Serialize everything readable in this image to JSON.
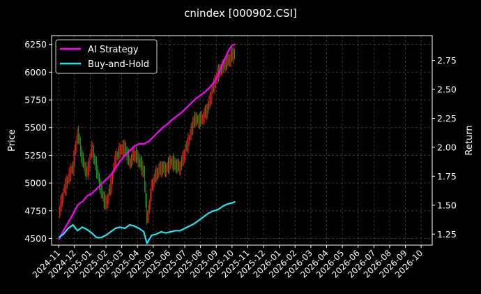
{
  "chart_data": {
    "type": "line",
    "title": "cnindex [000902.CSI]",
    "ylabel_left": "Price",
    "ylabel_right": "Return",
    "yticks_left": [
      4500,
      4750,
      5000,
      5250,
      5500,
      5750,
      6000,
      6250
    ],
    "ylim_left": [
      4440,
      6330
    ],
    "yticks_right": [
      1.25,
      1.5,
      1.75,
      2.0,
      2.25,
      2.5,
      2.75
    ],
    "ylim_right": [
      1.155,
      2.965
    ],
    "x_ticks": [
      "2024-11",
      "2024-12",
      "2025-01",
      "2025-02",
      "2025-03",
      "2025-04",
      "2025-05",
      "2025-06",
      "2025-07",
      "2025-08",
      "2025-09",
      "2025-10",
      "2025-11",
      "2025-12",
      "2026-01",
      "2026-02",
      "2026-03",
      "2026-04",
      "2026-05",
      "2026-06",
      "2026-07",
      "2026-08",
      "2026-09",
      "2026-10"
    ],
    "x_range": [
      -0.45,
      23.7
    ],
    "grid": true,
    "legend_position": "top-left",
    "colors": {
      "ai": "#ff00ff",
      "bh": "#22e5f0",
      "up": "#e0251b",
      "down": "#1d9a1d",
      "grid": "#444444"
    },
    "series": [
      {
        "name": "AI Strategy",
        "axis": "right",
        "x": [
          0,
          0.3,
          0.6,
          0.9,
          1.2,
          1.5,
          1.8,
          2.1,
          2.4,
          2.7,
          3.0,
          3.3,
          3.6,
          3.9,
          4.2,
          4.5,
          4.8,
          5.1,
          5.4,
          5.7,
          6.0,
          6.3,
          6.6,
          6.9,
          7.2,
          7.5,
          7.8,
          8.1,
          8.4,
          8.7,
          9.0,
          9.3,
          9.6,
          9.9,
          10.2,
          10.4,
          10.6,
          10.8,
          11.0,
          11.2
        ],
        "values": [
          1.2,
          1.28,
          1.35,
          1.42,
          1.5,
          1.53,
          1.58,
          1.6,
          1.64,
          1.68,
          1.72,
          1.76,
          1.82,
          1.88,
          1.93,
          1.97,
          2.01,
          2.03,
          2.03,
          2.05,
          2.09,
          2.13,
          2.17,
          2.2,
          2.24,
          2.27,
          2.3,
          2.34,
          2.38,
          2.42,
          2.45,
          2.48,
          2.52,
          2.57,
          2.65,
          2.72,
          2.78,
          2.84,
          2.88,
          2.89
        ]
      },
      {
        "name": "Buy-and-Hold",
        "axis": "right",
        "x": [
          0,
          0.3,
          0.6,
          0.9,
          1.2,
          1.5,
          1.8,
          2.1,
          2.4,
          2.7,
          3.0,
          3.3,
          3.6,
          3.9,
          4.2,
          4.5,
          4.8,
          5.1,
          5.4,
          5.6,
          5.9,
          6.2,
          6.5,
          6.8,
          7.1,
          7.4,
          7.7,
          8.0,
          8.3,
          8.6,
          8.9,
          9.2,
          9.5,
          9.8,
          10.1,
          10.4,
          10.7,
          11.0,
          11.2
        ],
        "values": [
          1.22,
          1.25,
          1.3,
          1.33,
          1.28,
          1.31,
          1.29,
          1.26,
          1.22,
          1.22,
          1.24,
          1.27,
          1.3,
          1.31,
          1.3,
          1.33,
          1.32,
          1.3,
          1.27,
          1.17,
          1.24,
          1.25,
          1.27,
          1.26,
          1.27,
          1.28,
          1.28,
          1.3,
          1.32,
          1.34,
          1.37,
          1.4,
          1.43,
          1.45,
          1.46,
          1.49,
          1.51,
          1.52,
          1.53
        ]
      },
      {
        "name": "Price",
        "axis": "left",
        "type": "candlestick",
        "x": [
          0,
          0.3,
          0.6,
          0.9,
          1.2,
          1.5,
          1.8,
          2.1,
          2.4,
          2.7,
          3.0,
          3.3,
          3.6,
          3.9,
          4.2,
          4.5,
          4.8,
          5.1,
          5.4,
          5.6,
          5.9,
          6.2,
          6.5,
          6.8,
          7.1,
          7.4,
          7.7,
          8.0,
          8.3,
          8.6,
          8.9,
          9.2,
          9.5,
          9.8,
          10.1,
          10.4,
          10.7,
          11.0,
          11.2
        ],
        "values": [
          4720,
          4920,
          5050,
          5150,
          5460,
          5200,
          5080,
          5320,
          5120,
          4920,
          4800,
          4980,
          5230,
          5300,
          5320,
          5180,
          5270,
          5200,
          5100,
          4650,
          4980,
          5090,
          5140,
          5120,
          5200,
          5160,
          5140,
          5280,
          5420,
          5580,
          5560,
          5600,
          5700,
          5870,
          5990,
          6050,
          6100,
          6150,
          6190
        ]
      }
    ]
  }
}
